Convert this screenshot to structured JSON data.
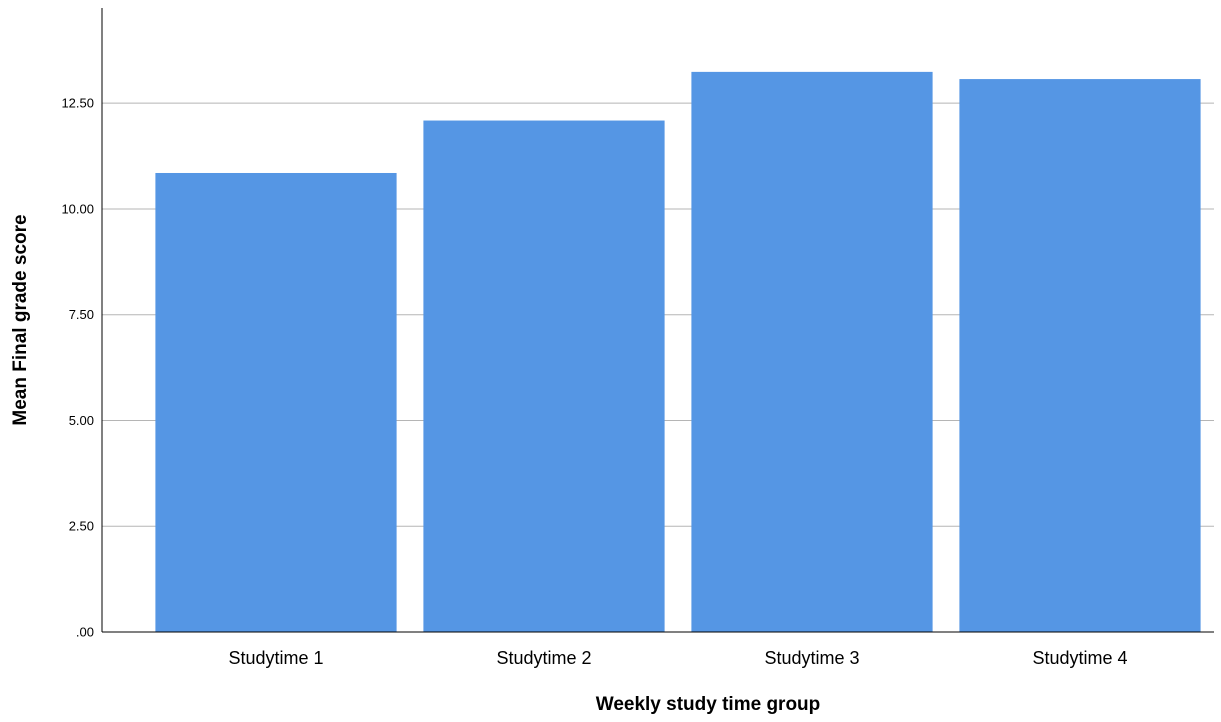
{
  "chart_data": {
    "type": "bar",
    "categories": [
      "Studytime 1",
      "Studytime 2",
      "Studytime 3",
      "Studytime 4"
    ],
    "values": [
      10.85,
      12.09,
      13.24,
      13.07
    ],
    "xlabel": "Weekly study time group",
    "ylabel": "Mean Final grade score",
    "ylim": [
      0,
      14.75
    ],
    "yticks": [
      0,
      2.5,
      5,
      7.5,
      10,
      12.5
    ],
    "ytick_labels": [
      ".00",
      "2.50",
      "5.00",
      "7.50",
      "10.00",
      "12.50"
    ],
    "grid": true,
    "bar_color": "#5596e4"
  }
}
